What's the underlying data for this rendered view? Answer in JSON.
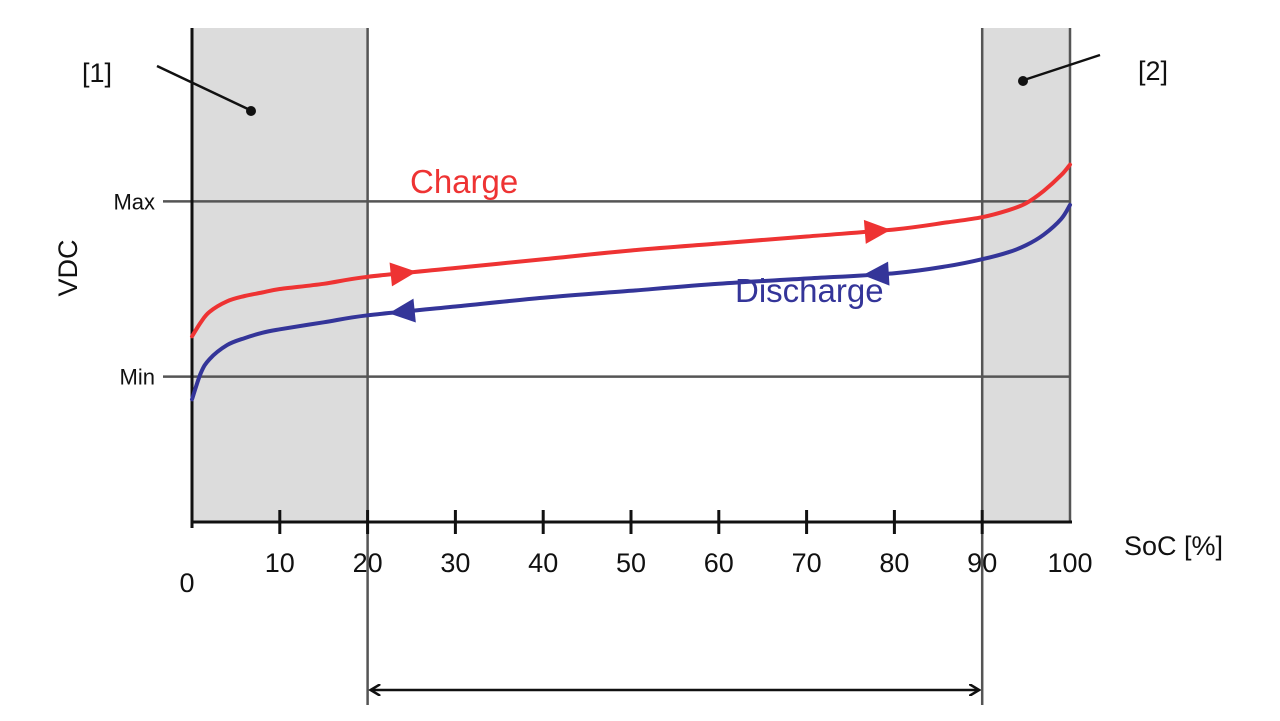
{
  "chart_data": {
    "type": "line",
    "xlabel": "SoC [%]",
    "ylabel": "VDC",
    "xlim": [
      0,
      100
    ],
    "x_ticks": [
      "0",
      "10",
      "20",
      "30",
      "40",
      "50",
      "60",
      "70",
      "80",
      "90",
      "100"
    ],
    "y_levels": [
      {
        "label": "Max",
        "value": 1.0
      },
      {
        "label": "Min",
        "value": 0.0
      }
    ],
    "ylim": [
      -0.83,
      1.99
    ],
    "grid": false,
    "legend": "none",
    "shaded_regions": [
      {
        "x": [
          0,
          20
        ],
        "callout": "[1]",
        "color": "#dcdcdc"
      },
      {
        "x": [
          90,
          100
        ],
        "callout": "[2]",
        "color": "#dcdcdc"
      }
    ],
    "usable_range_arrow": {
      "x": [
        20,
        90
      ]
    },
    "series": [
      {
        "name": "Charge",
        "color": "#ee3333",
        "x": [
          0,
          1,
          2,
          4,
          6,
          8,
          10,
          15,
          20,
          30,
          40,
          50,
          60,
          70,
          80,
          86,
          90,
          93,
          95,
          97,
          99,
          100
        ],
        "y": [
          0.23,
          0.31,
          0.37,
          0.43,
          0.46,
          0.48,
          0.5,
          0.53,
          0.57,
          0.62,
          0.67,
          0.72,
          0.76,
          0.8,
          0.84,
          0.88,
          0.91,
          0.95,
          0.99,
          1.06,
          1.15,
          1.21
        ],
        "arrows": [
          {
            "x": 24,
            "direction": "right"
          },
          {
            "x": 78,
            "direction": "right"
          }
        ]
      },
      {
        "name": "Discharge",
        "color": "#343599",
        "x": [
          0,
          1,
          2,
          4,
          6,
          8,
          10,
          15,
          20,
          30,
          40,
          50,
          60,
          70,
          80,
          86,
          90,
          93,
          95,
          97,
          99,
          100
        ],
        "y": [
          -0.13,
          0.02,
          0.1,
          0.18,
          0.22,
          0.25,
          0.27,
          0.31,
          0.35,
          0.4,
          0.45,
          0.49,
          0.53,
          0.56,
          0.59,
          0.63,
          0.67,
          0.71,
          0.75,
          0.81,
          0.9,
          0.98
        ],
        "arrows": [
          {
            "x": 24,
            "direction": "left"
          },
          {
            "x": 78,
            "direction": "left"
          }
        ]
      }
    ]
  }
}
